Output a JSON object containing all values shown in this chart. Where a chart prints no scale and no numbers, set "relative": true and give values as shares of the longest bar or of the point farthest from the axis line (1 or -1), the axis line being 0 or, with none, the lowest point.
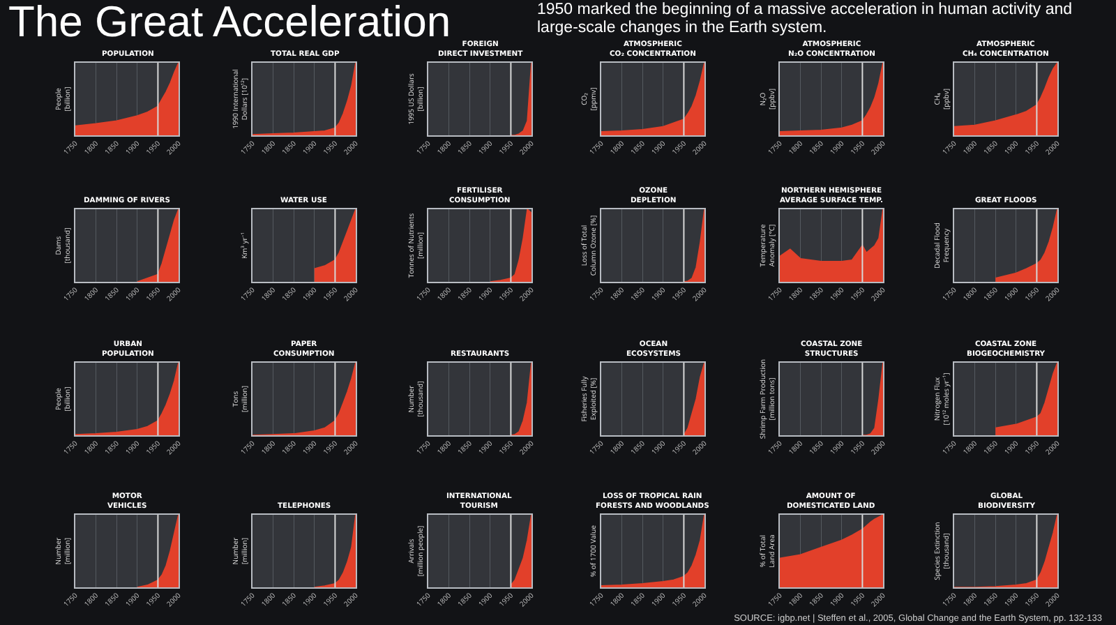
{
  "chart_data": [
    {
      "type": "other",
      "title": "The Great Acceleration",
      "subtitle": "1950 marked the beginning of a massive acceleration in human activity and large-scale changes in the Earth system.",
      "annotations": [
        "SOURCE: igbp.net | Steffen et al., 2005, Global Change and the Earth System, pp. 132-133"
      ]
    },
    {
      "type": "area",
      "title": "POPULATION",
      "ylabel": "People\n[billion]",
      "x": [
        1750,
        1800,
        1850,
        1900,
        1925,
        1950,
        1960,
        1970,
        1980,
        1990,
        2000
      ],
      "values": [
        0.13,
        0.16,
        0.2,
        0.27,
        0.32,
        0.4,
        0.5,
        0.6,
        0.72,
        0.87,
        1
      ],
      "color": "#e2402a",
      "relative": true,
      "xlim": [
        1750,
        2000
      ],
      "xticks": [
        1750,
        1800,
        1850,
        1900,
        1950,
        2000
      ],
      "tick_labels": "x",
      "grid": "x",
      "legend": false,
      "ref_lines": [
        {
          "axis": "x",
          "value": 1950
        }
      ]
    },
    {
      "type": "area",
      "title": "TOTAL REAL GDP",
      "ylabel": "1990 International\nDollars [10¹²]",
      "x": [
        1750,
        1800,
        1850,
        1900,
        1925,
        1950,
        1960,
        1970,
        1980,
        1990,
        2000
      ],
      "values": [
        0.01,
        0.02,
        0.03,
        0.05,
        0.06,
        0.1,
        0.17,
        0.3,
        0.47,
        0.68,
        1
      ],
      "color": "#e2402a",
      "relative": true,
      "xlim": [
        1750,
        2000
      ],
      "xticks": [
        1750,
        1800,
        1850,
        1900,
        1950,
        2000
      ],
      "tick_labels": "x",
      "grid": "x",
      "legend": false,
      "ref_lines": [
        {
          "axis": "x",
          "value": 1950
        }
      ]
    },
    {
      "type": "area",
      "title": "FOREIGN\nDIRECT INVESTMENT",
      "ylabel": "1995 US Dollars\n[billion]",
      "x": [
        1950,
        1960,
        1970,
        1980,
        1990,
        2000
      ],
      "values": [
        0,
        0,
        0.02,
        0.06,
        0.2,
        1
      ],
      "color": "#e2402a",
      "relative": true,
      "xlim": [
        1750,
        2000
      ],
      "xticks": [
        1750,
        1800,
        1850,
        1900,
        1950,
        2000
      ],
      "tick_labels": "x",
      "grid": "x",
      "legend": false,
      "ref_lines": [
        {
          "axis": "x",
          "value": 1950
        }
      ]
    },
    {
      "type": "area",
      "title": "ATMOSPHERIC\nCO₂ CONCENTRATION",
      "ylabel": "CO₂\n[ppmv]",
      "x": [
        1750,
        1800,
        1850,
        1900,
        1925,
        1950,
        1960,
        1970,
        1980,
        1990,
        2000
      ],
      "values": [
        0.05,
        0.06,
        0.08,
        0.12,
        0.17,
        0.22,
        0.3,
        0.4,
        0.55,
        0.75,
        1
      ],
      "color": "#e2402a",
      "relative": true,
      "xlim": [
        1750,
        2000
      ],
      "xticks": [
        1750,
        1800,
        1850,
        1900,
        1950,
        2000
      ],
      "tick_labels": "x",
      "grid": "x",
      "legend": false,
      "ref_lines": [
        {
          "axis": "x",
          "value": 1950
        }
      ]
    },
    {
      "type": "area",
      "title": "ATMOSPHERIC\nN₂O CONCENTRATION",
      "ylabel": "N₂O\n[ppbv]",
      "x": [
        1750,
        1800,
        1850,
        1900,
        1925,
        1950,
        1960,
        1970,
        1980,
        1990,
        2000
      ],
      "values": [
        0.05,
        0.06,
        0.07,
        0.1,
        0.14,
        0.2,
        0.28,
        0.38,
        0.52,
        0.72,
        1
      ],
      "color": "#e2402a",
      "relative": true,
      "xlim": [
        1750,
        2000
      ],
      "xticks": [
        1750,
        1800,
        1850,
        1900,
        1950,
        2000
      ],
      "tick_labels": "x",
      "grid": "x",
      "legend": false,
      "ref_lines": [
        {
          "axis": "x",
          "value": 1950
        }
      ]
    },
    {
      "type": "area",
      "title": "ATMOSPHERIC\nCH₄ CONCENTRATION",
      "ylabel": "CH₄\n[ppbv]",
      "x": [
        1750,
        1800,
        1850,
        1900,
        1925,
        1950,
        1960,
        1970,
        1980,
        1990,
        2000
      ],
      "values": [
        0.12,
        0.14,
        0.2,
        0.28,
        0.33,
        0.42,
        0.52,
        0.65,
        0.8,
        0.92,
        1
      ],
      "color": "#e2402a",
      "relative": true,
      "xlim": [
        1750,
        2000
      ],
      "xticks": [
        1750,
        1800,
        1850,
        1900,
        1950,
        2000
      ],
      "tick_labels": "x",
      "grid": "x",
      "legend": false,
      "ref_lines": [
        {
          "axis": "x",
          "value": 1950
        }
      ]
    },
    {
      "type": "area",
      "title": "DAMMING OF RIVERS",
      "ylabel": "Dams\n[thousand]",
      "x": [
        1900,
        1925,
        1950,
        1960,
        1970,
        1980,
        1990,
        2000
      ],
      "values": [
        0,
        0.05,
        0.1,
        0.25,
        0.45,
        0.65,
        0.85,
        1
      ],
      "color": "#e2402a",
      "relative": true,
      "xlim": [
        1750,
        2000
      ],
      "xticks": [
        1750,
        1800,
        1850,
        1900,
        1950,
        2000
      ],
      "tick_labels": "x",
      "grid": "x",
      "legend": false,
      "ref_lines": [
        {
          "axis": "x",
          "value": 1950
        }
      ]
    },
    {
      "type": "area",
      "title": "WATER USE",
      "ylabel": "Km³ yr⁻¹",
      "x": [
        1900,
        1925,
        1950,
        1960,
        1970,
        1980,
        1990,
        2000
      ],
      "values": [
        0.18,
        0.22,
        0.3,
        0.4,
        0.55,
        0.7,
        0.85,
        1
      ],
      "color": "#e2402a",
      "relative": true,
      "xlim": [
        1750,
        2000
      ],
      "xticks": [
        1750,
        1800,
        1850,
        1900,
        1950,
        2000
      ],
      "tick_labels": "x",
      "grid": "x",
      "legend": false,
      "ref_lines": [
        {
          "axis": "x",
          "value": 1950
        }
      ]
    },
    {
      "type": "area",
      "title": "FERTILISER\nCONSUMPTION",
      "ylabel": "Tonnes of Nutrients\n[million]",
      "x": [
        1900,
        1925,
        1950,
        1960,
        1970,
        1980,
        1990,
        2000
      ],
      "values": [
        0,
        0.02,
        0.05,
        0.1,
        0.3,
        0.6,
        1,
        0.95
      ],
      "color": "#e2402a",
      "relative": true,
      "xlim": [
        1750,
        2000
      ],
      "xticks": [
        1750,
        1800,
        1850,
        1900,
        1950,
        2000
      ],
      "tick_labels": "x",
      "grid": "x",
      "legend": false,
      "ref_lines": [
        {
          "axis": "x",
          "value": 1950
        }
      ]
    },
    {
      "type": "area",
      "title": "OZONE\nDEPLETION",
      "ylabel": "Loss of Total\nColumn Ozone [%]",
      "x": [
        1950,
        1960,
        1970,
        1980,
        1990,
        2000
      ],
      "values": [
        0,
        0.01,
        0.05,
        0.2,
        0.55,
        1
      ],
      "color": "#e2402a",
      "relative": true,
      "xlim": [
        1750,
        2000
      ],
      "xticks": [
        1750,
        1800,
        1850,
        1900,
        1950,
        2000
      ],
      "tick_labels": "x",
      "grid": "x",
      "legend": false,
      "ref_lines": [
        {
          "axis": "x",
          "value": 1950
        }
      ]
    },
    {
      "type": "area",
      "title": "NORTHERN HEMISPHERE\nAVERAGE SURFACE TEMP.",
      "ylabel": "Temperature\nAnomaly [°C]",
      "x": [
        1750,
        1775,
        1800,
        1850,
        1900,
        1925,
        1950,
        1960,
        1970,
        1980,
        1990,
        2000
      ],
      "values": [
        0.35,
        0.45,
        0.32,
        0.28,
        0.28,
        0.3,
        0.5,
        0.4,
        0.45,
        0.5,
        0.6,
        1
      ],
      "color": "#e2402a",
      "relative": true,
      "xlim": [
        1750,
        2000
      ],
      "xticks": [
        1750,
        1800,
        1850,
        1900,
        1950,
        2000
      ],
      "tick_labels": "x",
      "grid": "x",
      "legend": false,
      "ref_lines": [
        {
          "axis": "x",
          "value": 1950
        }
      ]
    },
    {
      "type": "area",
      "title": "GREAT FLOODS",
      "ylabel": "Decadal Flood\nFrequency",
      "x": [
        1850,
        1900,
        1925,
        1950,
        1960,
        1970,
        1980,
        1990,
        2000
      ],
      "values": [
        0.05,
        0.12,
        0.18,
        0.25,
        0.3,
        0.4,
        0.55,
        0.75,
        1
      ],
      "color": "#e2402a",
      "relative": true,
      "xlim": [
        1750,
        2000
      ],
      "xticks": [
        1750,
        1800,
        1850,
        1900,
        1950,
        2000
      ],
      "tick_labels": "x",
      "grid": "x",
      "legend": false,
      "ref_lines": [
        {
          "axis": "x",
          "value": 1950
        }
      ]
    },
    {
      "type": "area",
      "title": "URBAN\nPOPULATION",
      "ylabel": "People\n[billion]",
      "x": [
        1750,
        1800,
        1850,
        1900,
        1925,
        1950,
        1960,
        1970,
        1980,
        1990,
        2000
      ],
      "values": [
        0.01,
        0.02,
        0.04,
        0.08,
        0.12,
        0.2,
        0.3,
        0.42,
        0.57,
        0.75,
        1
      ],
      "color": "#e2402a",
      "relative": true,
      "xlim": [
        1750,
        2000
      ],
      "xticks": [
        1750,
        1800,
        1850,
        1900,
        1950,
        2000
      ],
      "tick_labels": "x",
      "grid": "x",
      "legend": false,
      "ref_lines": [
        {
          "axis": "x",
          "value": 1950
        }
      ]
    },
    {
      "type": "area",
      "title": "PAPER\nCONSUMPTION",
      "ylabel": "Tons\n[million]",
      "x": [
        1750,
        1800,
        1850,
        1900,
        1925,
        1950,
        1960,
        1970,
        1980,
        1990,
        2000
      ],
      "values": [
        0,
        0.01,
        0.02,
        0.06,
        0.1,
        0.2,
        0.3,
        0.45,
        0.6,
        0.78,
        1
      ],
      "color": "#e2402a",
      "relative": true,
      "xlim": [
        1750,
        2000
      ],
      "xticks": [
        1750,
        1800,
        1850,
        1900,
        1950,
        2000
      ],
      "tick_labels": "x",
      "grid": "x",
      "legend": false,
      "ref_lines": [
        {
          "axis": "x",
          "value": 1950
        }
      ]
    },
    {
      "type": "area",
      "title": "RESTAURANTS",
      "ylabel": "Number\n[thousand]",
      "x": [
        1950,
        1960,
        1970,
        1980,
        1990,
        2000
      ],
      "values": [
        0,
        0.01,
        0.05,
        0.2,
        0.45,
        1
      ],
      "color": "#e2402a",
      "relative": true,
      "xlim": [
        1750,
        2000
      ],
      "xticks": [
        1750,
        1800,
        1850,
        1900,
        1950,
        2000
      ],
      "tick_labels": "x",
      "grid": "x",
      "legend": false,
      "ref_lines": [
        {
          "axis": "x",
          "value": 1950
        }
      ]
    },
    {
      "type": "area",
      "title": "OCEAN\nECOSYSTEMS",
      "ylabel": "Fisheries Fully\nExploited [%]",
      "x": [
        1950,
        1960,
        1970,
        1980,
        1990,
        2000
      ],
      "values": [
        0,
        0.1,
        0.3,
        0.5,
        0.8,
        1
      ],
      "color": "#e2402a",
      "relative": true,
      "xlim": [
        1750,
        2000
      ],
      "xticks": [
        1750,
        1800,
        1850,
        1900,
        1950,
        2000
      ],
      "tick_labels": "x",
      "grid": "x",
      "legend": false,
      "ref_lines": [
        {
          "axis": "x",
          "value": 1950
        }
      ]
    },
    {
      "type": "area",
      "title": "COASTAL ZONE\nSTRUCTURES",
      "ylabel": "Shrimp Farm Production\n[million tons]",
      "x": [
        1950,
        1960,
        1970,
        1980,
        1990,
        2000
      ],
      "values": [
        0,
        0,
        0.02,
        0.1,
        0.5,
        1
      ],
      "color": "#e2402a",
      "relative": true,
      "xlim": [
        1750,
        2000
      ],
      "xticks": [
        1750,
        1800,
        1850,
        1900,
        1950,
        2000
      ],
      "tick_labels": "x",
      "grid": "x",
      "legend": false,
      "ref_lines": [
        {
          "axis": "x",
          "value": 1950
        }
      ]
    },
    {
      "type": "area",
      "title": "COASTAL ZONE\nBIOGEOCHEMISTRY",
      "ylabel": "Nitrogen Flux\n[10¹² moles yr⁻¹]",
      "x": [
        1850,
        1900,
        1925,
        1950,
        1960,
        1970,
        1980,
        1990,
        2000
      ],
      "values": [
        0.1,
        0.15,
        0.2,
        0.25,
        0.3,
        0.45,
        0.65,
        0.85,
        1
      ],
      "color": "#e2402a",
      "relative": true,
      "xlim": [
        1750,
        2000
      ],
      "xticks": [
        1750,
        1800,
        1850,
        1900,
        1950,
        2000
      ],
      "tick_labels": "x",
      "grid": "x",
      "legend": false,
      "ref_lines": [
        {
          "axis": "x",
          "value": 1950
        }
      ]
    },
    {
      "type": "area",
      "title": "MOTOR\nVEHICLES",
      "ylabel": "Number\n[million]",
      "x": [
        1900,
        1925,
        1950,
        1960,
        1970,
        1980,
        1990,
        2000
      ],
      "values": [
        0,
        0.03,
        0.1,
        0.17,
        0.3,
        0.5,
        0.75,
        1
      ],
      "color": "#e2402a",
      "relative": true,
      "xlim": [
        1750,
        2000
      ],
      "xticks": [
        1750,
        1800,
        1850,
        1900,
        1950,
        2000
      ],
      "tick_labels": "x",
      "grid": "x",
      "legend": false,
      "ref_lines": [
        {
          "axis": "x",
          "value": 1950
        }
      ]
    },
    {
      "type": "area",
      "title": "TELEPHONES",
      "ylabel": "Number\n[million]",
      "x": [
        1900,
        1925,
        1950,
        1960,
        1970,
        1980,
        1990,
        2000
      ],
      "values": [
        0,
        0.02,
        0.05,
        0.1,
        0.2,
        0.35,
        0.55,
        1
      ],
      "color": "#e2402a",
      "relative": true,
      "xlim": [
        1750,
        2000
      ],
      "xticks": [
        1750,
        1800,
        1850,
        1900,
        1950,
        2000
      ],
      "tick_labels": "x",
      "grid": "x",
      "legend": false,
      "ref_lines": [
        {
          "axis": "x",
          "value": 1950
        }
      ]
    },
    {
      "type": "area",
      "title": "INTERNATIONAL\nTOURISM",
      "ylabel": "Arrivals\n[million people]",
      "x": [
        1950,
        1960,
        1970,
        1980,
        1990,
        2000
      ],
      "values": [
        0.03,
        0.1,
        0.25,
        0.4,
        0.65,
        1
      ],
      "color": "#e2402a",
      "relative": true,
      "xlim": [
        1750,
        2000
      ],
      "xticks": [
        1750,
        1800,
        1850,
        1900,
        1950,
        2000
      ],
      "tick_labels": "x",
      "grid": "x",
      "legend": false,
      "ref_lines": [
        {
          "axis": "x",
          "value": 1950
        }
      ]
    },
    {
      "type": "area",
      "title": "LOSS OF TROPICAL RAIN\nFORESTS AND WOODLANDS",
      "ylabel": "% of 1700 Value",
      "x": [
        1750,
        1800,
        1850,
        1900,
        1925,
        1950,
        1960,
        1970,
        1980,
        1990,
        2000
      ],
      "values": [
        0.02,
        0.03,
        0.05,
        0.08,
        0.1,
        0.15,
        0.2,
        0.3,
        0.45,
        0.65,
        1
      ],
      "color": "#e2402a",
      "relative": true,
      "xlim": [
        1750,
        2000
      ],
      "xticks": [
        1750,
        1800,
        1850,
        1900,
        1950,
        2000
      ],
      "tick_labels": "x",
      "grid": "x",
      "legend": false,
      "ref_lines": [
        {
          "axis": "x",
          "value": 1950
        }
      ]
    },
    {
      "type": "area",
      "title": "AMOUNT OF\nDOMESTICATED LAND",
      "ylabel": "% of Total\nLand Area",
      "x": [
        1750,
        1800,
        1850,
        1900,
        1925,
        1950,
        1960,
        1970,
        1980,
        1990,
        2000
      ],
      "values": [
        0.4,
        0.45,
        0.55,
        0.65,
        0.72,
        0.8,
        0.85,
        0.9,
        0.94,
        0.97,
        1
      ],
      "color": "#e2402a",
      "relative": true,
      "xlim": [
        1750,
        2000
      ],
      "xticks": [
        1750,
        1800,
        1850,
        1900,
        1950,
        2000
      ],
      "tick_labels": "x",
      "grid": "x",
      "legend": false,
      "ref_lines": [
        {
          "axis": "x",
          "value": 1950
        }
      ]
    },
    {
      "type": "area",
      "title": "GLOBAL\nBIODIVERSITY",
      "ylabel": "Species Extinction\n[thousand]",
      "x": [
        1750,
        1800,
        1850,
        1900,
        1925,
        1950,
        1960,
        1970,
        1980,
        1990,
        2000
      ],
      "values": [
        0,
        0,
        0.01,
        0.03,
        0.05,
        0.1,
        0.2,
        0.35,
        0.55,
        0.75,
        1
      ],
      "color": "#e2402a",
      "relative": true,
      "xlim": [
        1750,
        2000
      ],
      "xticks": [
        1750,
        1800,
        1850,
        1900,
        1950,
        2000
      ],
      "tick_labels": "x",
      "grid": "x",
      "legend": false,
      "ref_lines": [
        {
          "axis": "x",
          "value": 1950
        }
      ]
    }
  ]
}
